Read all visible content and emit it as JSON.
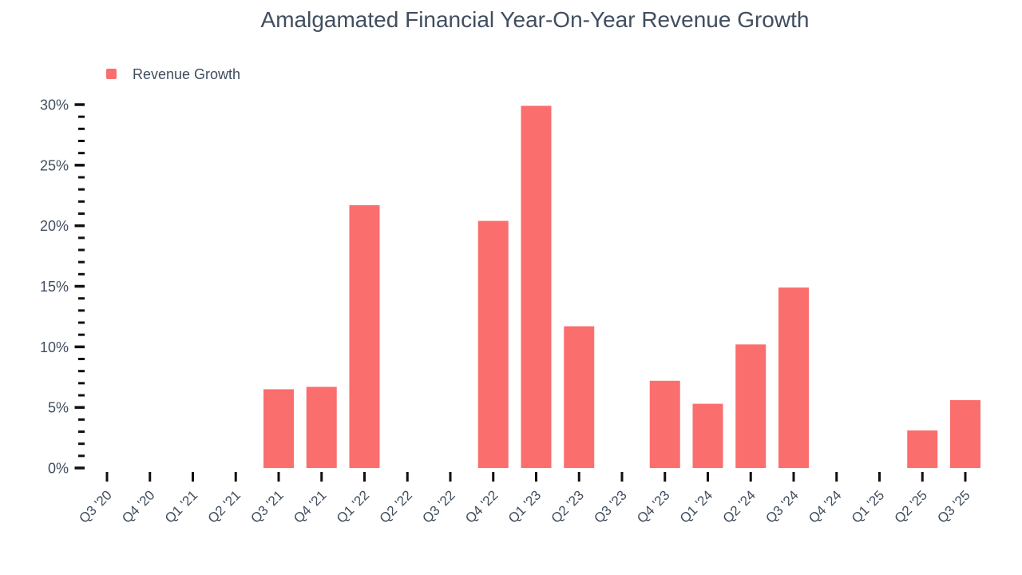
{
  "page": {
    "background_color": "#ffffff"
  },
  "chart_data": {
    "type": "bar",
    "title": "Amalgamated Financial Year-On-Year Revenue Growth",
    "legend": {
      "label": "Revenue Growth",
      "position": "top-left"
    },
    "categories": [
      "Q3 '20",
      "Q4 '20",
      "Q1 '21",
      "Q2 '21",
      "Q3 '21",
      "Q4 '21",
      "Q1 '22",
      "Q2 '22",
      "Q3 '22",
      "Q4 '22",
      "Q1 '23",
      "Q2 '23",
      "Q3 '23",
      "Q4 '23",
      "Q1 '24",
      "Q2 '24",
      "Q3 '24",
      "Q4 '24",
      "Q1 '25",
      "Q2 '25",
      "Q3 '25"
    ],
    "series": [
      {
        "name": "Revenue Growth",
        "color": "#fb6e6e",
        "values": [
          0,
          0,
          0,
          0,
          6.5,
          6.7,
          21.7,
          0,
          0,
          20.4,
          29.9,
          11.7,
          0,
          7.2,
          5.3,
          10.2,
          14.9,
          0,
          0,
          3.1,
          5.6
        ]
      }
    ],
    "xlabel": "",
    "ylabel": "",
    "ylim": [
      0,
      30
    ],
    "ytick_step": 5,
    "ytick_minor_step": 1,
    "ytick_labels": [
      "0%",
      "5%",
      "10%",
      "15%",
      "20%",
      "25%",
      "30%"
    ],
    "yformat": "percent",
    "grid": false,
    "axis_lines": false,
    "text_color": "#414e5f",
    "tick_color": "#111111"
  }
}
